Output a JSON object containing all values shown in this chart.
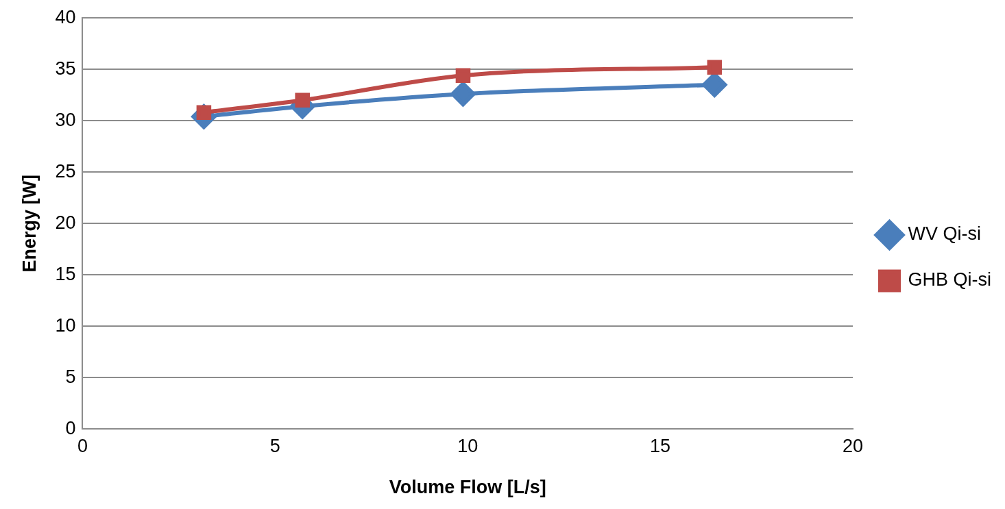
{
  "chart_data": {
    "type": "line",
    "xlabel": "Volume Flow [L/s]",
    "ylabel": "Energy [W]",
    "xlim": [
      0,
      20
    ],
    "xticks": [
      0,
      5,
      10,
      15,
      20
    ],
    "ylim": [
      0,
      40
    ],
    "yticks": [
      0,
      5,
      10,
      15,
      20,
      25,
      30,
      35,
      40
    ],
    "grid": "y",
    "legend": "right",
    "line_style": "solid",
    "series": [
      {
        "name": "WV Qi-si",
        "color": "#4a7ebb",
        "marker": "diamond",
        "x": [
          3.15,
          5.71,
          9.88,
          16.41
        ],
        "values": [
          30.4,
          31.4,
          32.6,
          33.5
        ]
      },
      {
        "name": "GHB Qi-si",
        "color": "#be4b48",
        "marker": "square",
        "x": [
          3.15,
          5.71,
          9.88,
          16.41
        ],
        "values": [
          30.8,
          32.0,
          34.4,
          35.2
        ]
      }
    ]
  }
}
